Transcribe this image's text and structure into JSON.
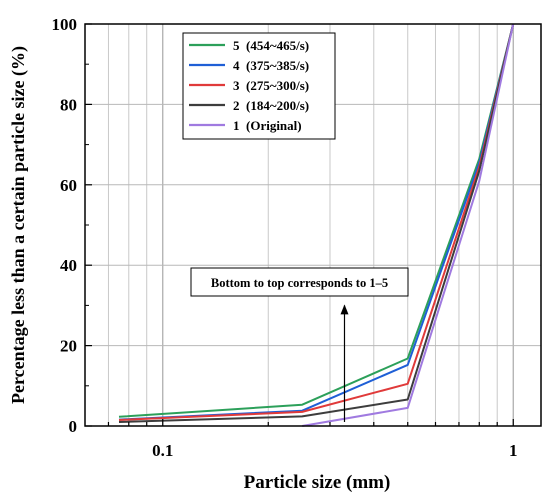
{
  "chart_data": {
    "type": "line",
    "title": "",
    "xlabel": "Particle size (mm)",
    "ylabel": "Percentage less than a certain particle size (%)",
    "x_scale": "log",
    "xlim": [
      0.06,
      1.2
    ],
    "ylim": [
      0,
      100
    ],
    "x_tick_values": [
      0.1,
      1
    ],
    "x_tick_labels": [
      "0.1",
      "1"
    ],
    "y_tick_values": [
      0,
      20,
      40,
      60,
      80,
      100
    ],
    "y_tick_labels": [
      "0",
      "20",
      "40",
      "60",
      "80",
      "100"
    ],
    "grid": true,
    "legend_position": "top-left",
    "annotation": {
      "text": "Bottom to top corresponds to 1–5",
      "arrow_x": 0.33,
      "arrow_from_y": 1,
      "arrow_to_y": 30
    },
    "series": [
      {
        "name": "5  (454~465/s)",
        "color": "#2ca05a",
        "x": [
          0.075,
          0.25,
          0.5,
          0.8,
          1.0
        ],
        "y": [
          2.3,
          5.3,
          16.8,
          66.5,
          100
        ]
      },
      {
        "name": "4  (375~385/s)",
        "color": "#1f5fd6",
        "x": [
          0.075,
          0.25,
          0.5,
          0.8,
          1.0
        ],
        "y": [
          1.6,
          3.8,
          15.2,
          65.5,
          100
        ]
      },
      {
        "name": "3  (275~300/s)",
        "color": "#e03a3a",
        "x": [
          0.075,
          0.25,
          0.5,
          0.8,
          1.0
        ],
        "y": [
          1.5,
          3.5,
          10.5,
          64.5,
          100
        ]
      },
      {
        "name": "2  (184~200/s)",
        "color": "#3d3d3d",
        "x": [
          0.075,
          0.25,
          0.5,
          0.8,
          1.0
        ],
        "y": [
          1.0,
          2.4,
          6.6,
          63.5,
          100
        ]
      },
      {
        "name": "1  (Original)",
        "color": "#a07ae0",
        "x": [
          0.25,
          0.5,
          0.8,
          1.0
        ],
        "y": [
          0.0,
          4.5,
          61.0,
          100
        ]
      }
    ]
  }
}
